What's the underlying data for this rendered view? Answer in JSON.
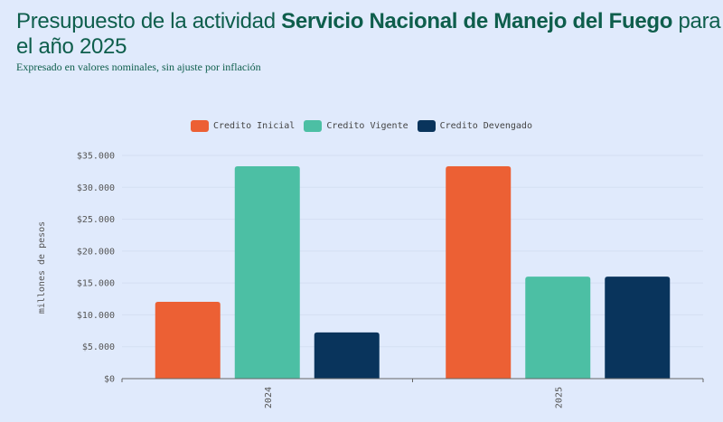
{
  "title_prefix": "Presupuesto de la actividad ",
  "title_bold": "Servicio Nacional de Manejo del Fuego",
  "title_suffix": " para el año 2025",
  "subtitle": "Expresado en valores nominales, sin ajuste por inflación",
  "chart_data": {
    "type": "bar",
    "title": "Presupuesto de la actividad Servicio Nacional de Manejo del Fuego para el año 2025",
    "xlabel": "",
    "ylabel": "millones de pesos",
    "categories": [
      "2024",
      "2025"
    ],
    "series": [
      {
        "name": "Credito Inicial",
        "color": "#ec6034",
        "values": [
          12050,
          33300
        ]
      },
      {
        "name": "Credito Vigente",
        "color": "#4cbfa4",
        "values": [
          33300,
          16000
        ]
      },
      {
        "name": "Credito Devengado",
        "color": "#09345c",
        "values": [
          7250,
          16000
        ]
      }
    ],
    "ylim": [
      0,
      35000
    ],
    "yticks": [
      0,
      5000,
      10000,
      15000,
      20000,
      25000,
      30000,
      35000
    ],
    "ytick_labels": [
      "$0",
      "$5.000",
      "$10.000",
      "$15.000",
      "$20.000",
      "$25.000",
      "$30.000",
      "$35.000"
    ],
    "grid": true,
    "legend_position": "top"
  }
}
